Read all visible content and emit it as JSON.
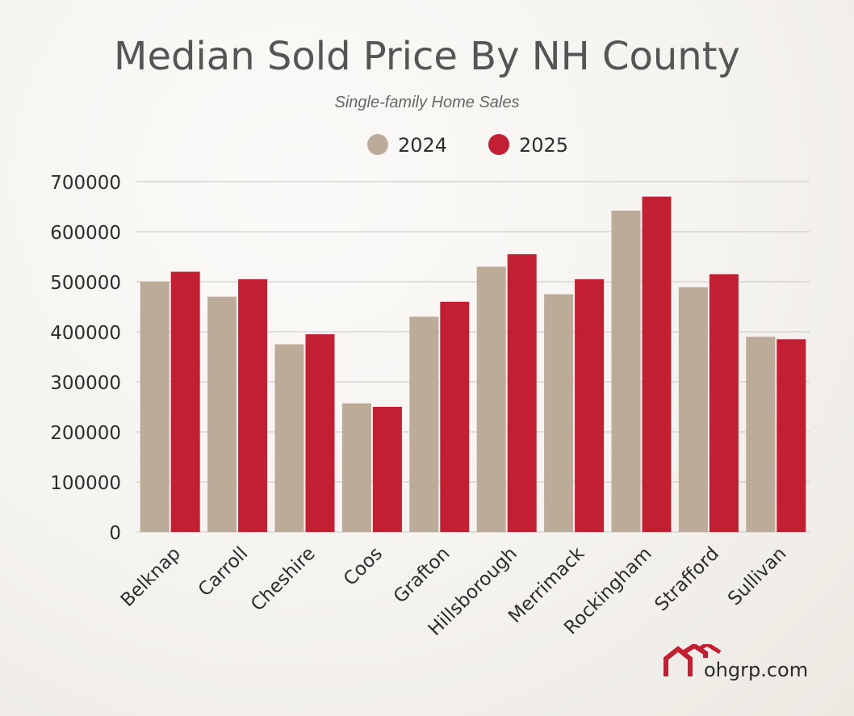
{
  "chart_data": {
    "type": "bar",
    "title": "Median Sold Price By NH County",
    "subtitle": "Single-family Home Sales",
    "xlabel": "",
    "ylabel": "",
    "categories": [
      "Belknap",
      "Carroll",
      "Cheshire",
      "Coos",
      "Grafton",
      "Hillsborough",
      "Merrimack",
      "Rockingham",
      "Strafford",
      "Sullivan"
    ],
    "series": [
      {
        "name": "2024",
        "color": "#bdab9a",
        "values": [
          500000,
          470000,
          375000,
          257000,
          430000,
          530000,
          475000,
          642000,
          489000,
          390000
        ]
      },
      {
        "name": "2025",
        "color": "#c31f33",
        "values": [
          520000,
          505000,
          395000,
          250000,
          460000,
          555000,
          505000,
          670000,
          515000,
          385000
        ]
      }
    ],
    "ylim": [
      0,
      700000
    ],
    "yticks": [
      "0",
      "100000",
      "200000",
      "300000",
      "400000",
      "500000",
      "600000",
      "700000"
    ],
    "grid": true,
    "legend": "top-center"
  },
  "brand": {
    "text": "ohgrp.com",
    "logo_icon": "house-roof-icon",
    "logo_color": "#c31f33"
  }
}
